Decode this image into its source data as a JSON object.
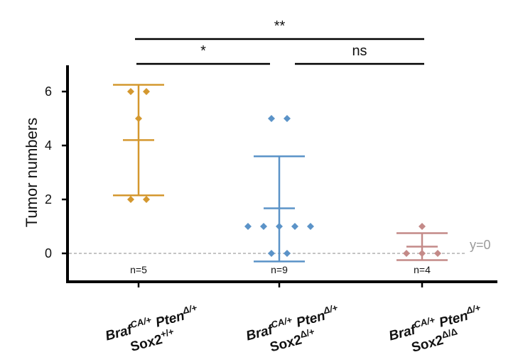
{
  "chart_data": {
    "type": "scatter",
    "ylabel": "Tumor numbers",
    "ylim": [
      -1,
      7
    ],
    "yticks": [
      "0",
      "2",
      "4",
      "6"
    ],
    "reference_line": {
      "y": 0,
      "label": "y=0"
    },
    "groups": [
      {
        "label_line1": {
          "gene1": "Braf",
          "sup1": "CA/+",
          "gene2": "Pten",
          "sup2": "Δ/+"
        },
        "label_line2": {
          "gene": "Sox2",
          "sup": "+/+"
        },
        "n_label": "n=5",
        "color": "#D4982F",
        "points": [
          6,
          6,
          5,
          2,
          2
        ],
        "mean": 4.2,
        "error_upper": 6.25,
        "error_lower": 2.15
      },
      {
        "label_line1": {
          "gene1": "Braf",
          "sup1": "CA/+",
          "gene2": "Pten",
          "sup2": "Δ/+"
        },
        "label_line2": {
          "gene": "Sox2",
          "sup": "Δ/+"
        },
        "n_label": "n=9",
        "color": "#5B93C8",
        "points": [
          5,
          5,
          1,
          1,
          1,
          1,
          1,
          0,
          0
        ],
        "mean": 1.67,
        "error_upper": 3.6,
        "error_lower": -0.3
      },
      {
        "label_line1": {
          "gene1": "Braf",
          "sup1": "CA/+",
          "gene2": "Pten",
          "sup2": "Δ/+"
        },
        "label_line2": {
          "gene": "Sox2",
          "sup": "Δ/Δ"
        },
        "n_label": "n=4",
        "color": "#C48A88",
        "points": [
          1,
          0,
          0,
          0
        ],
        "mean": 0.25,
        "error_upper": 0.75,
        "error_lower": -0.25
      }
    ],
    "comparisons": [
      {
        "from": 0,
        "to": 2,
        "label": "**"
      },
      {
        "from": 0,
        "to": 1,
        "label": "*"
      },
      {
        "from": 1,
        "to": 2,
        "label": "ns"
      }
    ]
  }
}
